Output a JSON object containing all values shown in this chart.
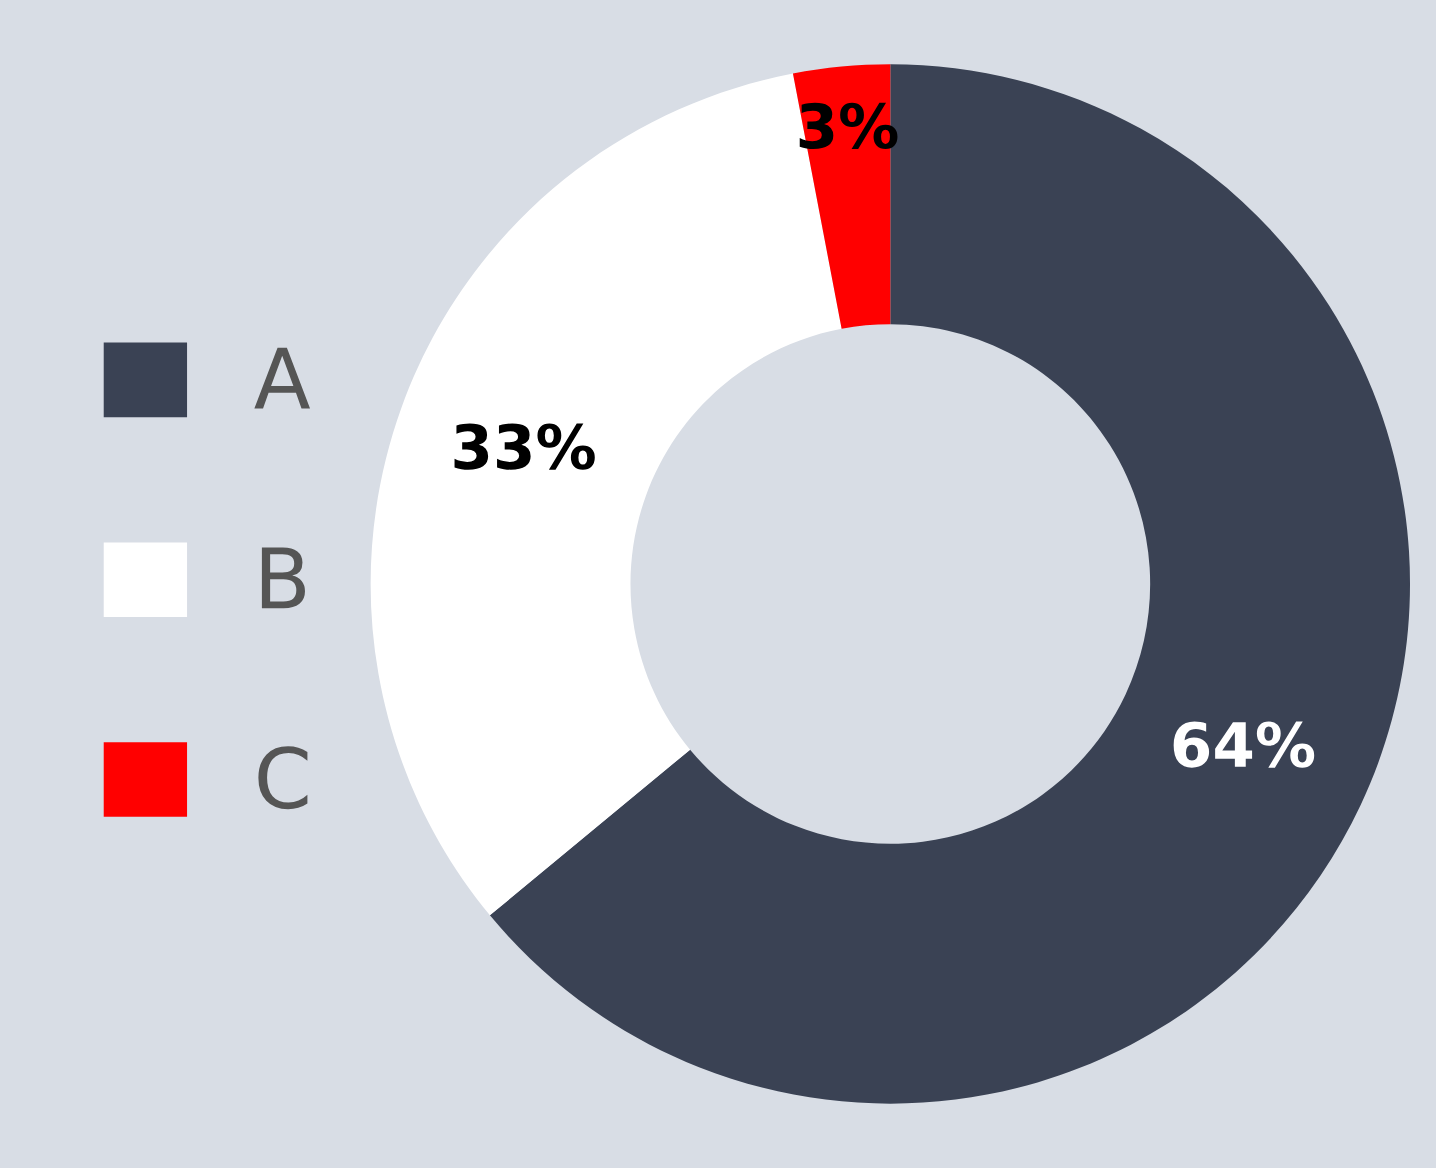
{
  "chart_data": {
    "type": "donut",
    "categories": [
      "A",
      "B",
      "C"
    ],
    "values": [
      64,
      33,
      3
    ],
    "colors": [
      "#3a4254",
      "#ffffff",
      "#ff0000"
    ],
    "value_labels": [
      "64%",
      "33%",
      "3%"
    ],
    "legend": "left"
  }
}
